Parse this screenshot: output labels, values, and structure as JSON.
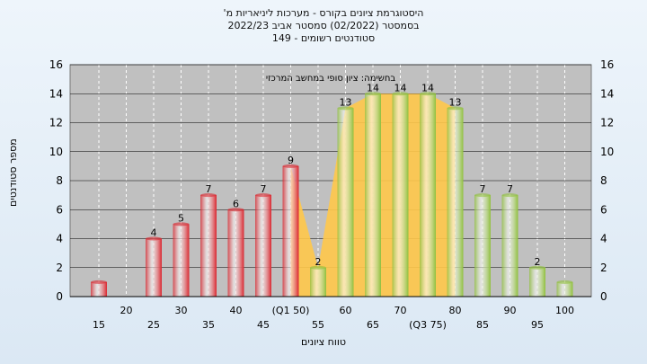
{
  "chart_data": {
    "type": "bar",
    "title_lines": [
      "היסטוגרמת ציונים בקורס - מערכות ליניאריות מ'",
      "בסמסטר (02/2022) סמסטר אביב 2022/23",
      "סטודנטים רשומים - 149"
    ],
    "annotation": "בחשימה: ציון סופי במחשב המרכזי",
    "xlabel": "טווח ציונים",
    "ylabel": "מספר סטודנטים",
    "ylim": [
      0,
      16
    ],
    "yticks": [
      0,
      2,
      4,
      6,
      8,
      10,
      12,
      14,
      16
    ],
    "grid": true,
    "categories": [
      "15",
      "20",
      "25",
      "30",
      "35",
      "40",
      "45",
      "(Q1 50)",
      "55",
      "60",
      "65",
      "70",
      "(Q3 75)",
      "80",
      "85",
      "90",
      "95",
      "100"
    ],
    "values": [
      1,
      0,
      4,
      5,
      7,
      6,
      7,
      9,
      2,
      13,
      14,
      14,
      14,
      13,
      7,
      7,
      2,
      1
    ],
    "bar_labels": [
      "",
      "",
      "4",
      "5",
      "7",
      "6",
      "7",
      "9",
      "2",
      "13",
      "14",
      "14",
      "14",
      "13",
      "7",
      "7",
      "2",
      ""
    ],
    "bar_colors": [
      "#d9252d",
      "#d9252d",
      "#d9252d",
      "#d9252d",
      "#d9252d",
      "#d9252d",
      "#d9252d",
      "#d9252d",
      "#8fbf3c",
      "#8fbf3c",
      "#8fbf3c",
      "#8fbf3c",
      "#8fbf3c",
      "#8fbf3c",
      "#8fbf3c",
      "#8fbf3c",
      "#8fbf3c",
      "#8fbf3c"
    ],
    "area_color": "#ffc84a",
    "plot_background": "#c0c0c0"
  }
}
